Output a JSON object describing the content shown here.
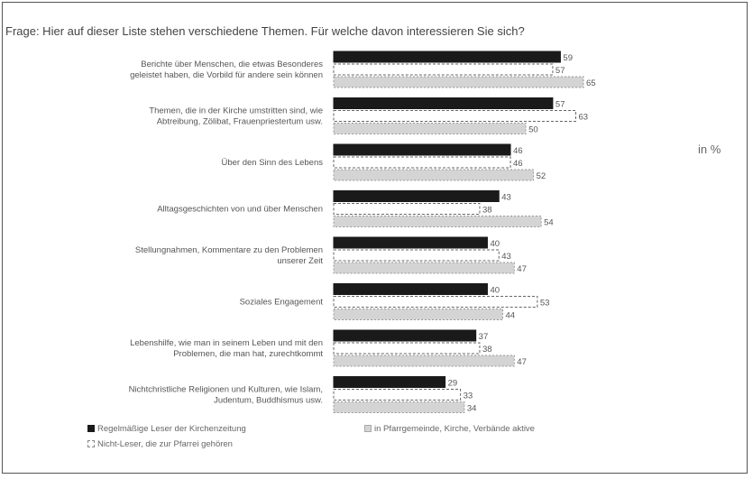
{
  "question": "Frage: Hier auf dieser Liste stehen verschiedene Themen. Für welche davon interessieren Sie sich?",
  "unit_label": "in %",
  "colors": {
    "series_1": "#1a1a1a",
    "series_2": "#ffffff",
    "series_3": "#d4d4d4",
    "outline": "#666666"
  },
  "chart_data": {
    "type": "bar",
    "orientation": "horizontal",
    "categories": [
      [
        "Berichte über Menschen, die etwas Besonderes",
        "geleistet haben, die Vorbild für andere sein können"
      ],
      [
        "Themen, die in der Kirche umstritten sind, wie",
        "Abtreibung, Zölibat, Frauenpriestertum usw."
      ],
      [
        "Über den Sinn des Lebens"
      ],
      [
        "Alltagsgeschichten von und über Menschen"
      ],
      [
        "Stellungnahmen, Kommentare zu den Problemen",
        "unserer Zeit"
      ],
      [
        "Soziales Engagement"
      ],
      [
        "Lebenshilfe, wie man in seinem Leben und mit den",
        "Problemen, die man hat, zurechtkommt"
      ],
      [
        "Nichtchristliche Religionen und Kulturen, wie Islam,",
        "Judentum, Buddhismus usw."
      ]
    ],
    "series": [
      {
        "name": "Regelmäßige Leser der Kirchenzeitung",
        "values": [
          59,
          57,
          46,
          43,
          40,
          40,
          37,
          29
        ]
      },
      {
        "name": "Nicht-Leser, die zur Pfarrei gehören",
        "values": [
          57,
          63,
          46,
          38,
          43,
          53,
          38,
          33
        ]
      },
      {
        "name": "in Pfarrgemeinde, Kirche, Verbände aktive",
        "values": [
          65,
          50,
          52,
          54,
          47,
          44,
          47,
          34
        ]
      }
    ],
    "xlim": [
      0,
      70
    ],
    "grid": false,
    "legend_position": "bottom-left"
  }
}
